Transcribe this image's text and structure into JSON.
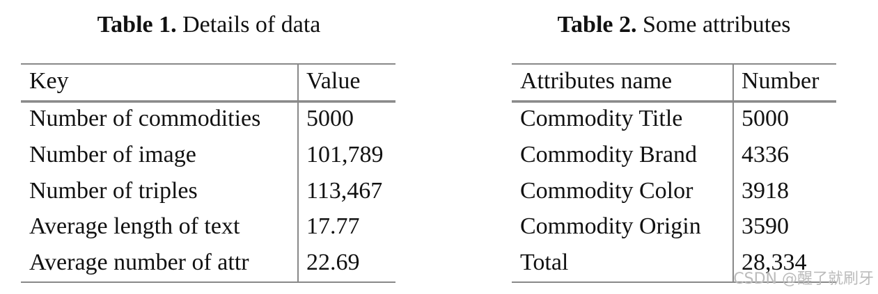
{
  "tables": [
    {
      "label": "Table 1.",
      "caption": "Details of data",
      "header": [
        "Key",
        "Value"
      ],
      "rows": [
        [
          "Number of commodities",
          "5000"
        ],
        [
          "Number of image",
          "101,789"
        ],
        [
          "Number of triples",
          "113,467"
        ],
        [
          "Average length of text",
          "17.77"
        ],
        [
          "Average number of attr",
          "22.69"
        ]
      ]
    },
    {
      "label": "Table 2.",
      "caption": "Some attributes",
      "header": [
        "Attributes name",
        "Number"
      ],
      "rows": [
        [
          "Commodity Title",
          "5000"
        ],
        [
          "Commodity Brand",
          "4336"
        ],
        [
          "Commodity Color",
          "3918"
        ],
        [
          "Commodity Origin",
          "3590"
        ],
        [
          "Total",
          "28,334"
        ]
      ]
    }
  ],
  "watermark": "CSDN @醒了就刷牙"
}
